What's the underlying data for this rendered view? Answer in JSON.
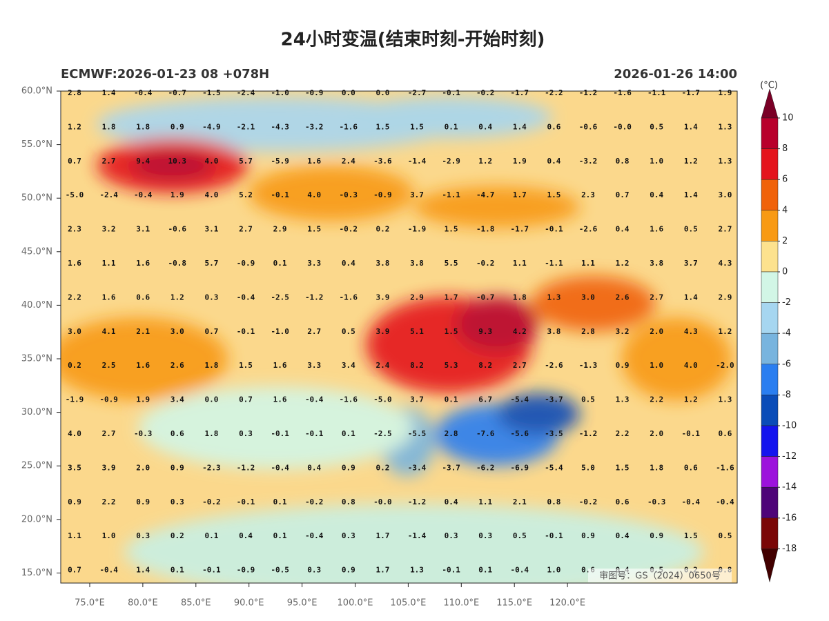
{
  "title": "24小时变温(结束时刻-开始时刻)",
  "subtitle_left": "ECMWF:2026-01-23 08 +078H",
  "subtitle_right": "2026-01-26 14:00",
  "lat_labels": [
    "60.0°N",
    "55.0°N",
    "50.0°N",
    "45.0°N",
    "40.0°N",
    "35.0°N",
    "30.0°N",
    "25.0°N",
    "20.0°N",
    "15.0°N"
  ],
  "lon_labels": [
    "75.0°E",
    "80.0°E",
    "85.0°E",
    "90.0°E",
    "95.0°E",
    "100.0°E",
    "105.0°E",
    "110.0°E",
    "115.0°E",
    "120.0°E"
  ],
  "colorbar": {
    "unit": "(°C)",
    "ticks": [
      10,
      8,
      6,
      4,
      2,
      0,
      -2,
      -4,
      -6,
      -8,
      -10,
      -12,
      -14,
      -16,
      -18
    ],
    "colors": [
      "#7a0026",
      "#b8002c",
      "#e4141c",
      "#f0620a",
      "#f89a14",
      "#fde28e",
      "#d2f6e6",
      "#a6d6f0",
      "#78b4de",
      "#2a7ef0",
      "#0a4cb8",
      "#1414ee",
      "#9c12dc",
      "#4e0478",
      "#7a0606",
      "#420000"
    ]
  },
  "grid_labels": [
    [
      "2.8",
      "1.4",
      "-0.4",
      "-0.7",
      "-1.5",
      "-2.4",
      "-1.0",
      "-0.9",
      "0.0",
      "0.0",
      "-2.7",
      "-0.1",
      "-0.2",
      "-1.7",
      "-2.2",
      "-1.2",
      "-1.6",
      "-1.1",
      "-1.7",
      "1.9"
    ],
    [
      "1.2",
      "1.8",
      "1.8",
      "0.9",
      "-4.9",
      "-2.1",
      "-4.3",
      "-3.2",
      "-1.6",
      "1.5",
      "1.5",
      "0.1",
      "0.4",
      "1.4",
      "0.6",
      "-0.6",
      "-0.0",
      "0.5",
      "1.4",
      "1.3"
    ],
    [
      "0.7",
      "2.7",
      "9.4",
      "10.3",
      "4.0",
      "5.7",
      "-5.9",
      "1.6",
      "2.4",
      "-3.6",
      "-1.4",
      "-2.9",
      "1.2",
      "1.9",
      "0.4",
      "-3.2",
      "0.8",
      "1.0",
      "1.2",
      "1.3"
    ],
    [
      "-5.0",
      "-2.4",
      "-0.4",
      "1.9",
      "4.0",
      "5.2",
      "-0.1",
      "4.0",
      "-0.3",
      "-0.9",
      "3.7",
      "-1.1",
      "-4.7",
      "1.7",
      "1.5",
      "2.3",
      "0.7",
      "0.4",
      "1.4",
      "3.0"
    ],
    [
      "2.3",
      "3.2",
      "3.1",
      "-0.6",
      "3.1",
      "2.7",
      "2.9",
      "1.5",
      "-0.2",
      "0.2",
      "-1.9",
      "1.5",
      "-1.8",
      "-1.7",
      "-0.1",
      "-2.6",
      "0.4",
      "1.6",
      "0.5",
      "2.7"
    ],
    [
      "1.6",
      "1.1",
      "1.6",
      "-0.8",
      "5.7",
      "-0.9",
      "0.1",
      "3.3",
      "0.4",
      "3.8",
      "3.8",
      "5.5",
      "-0.2",
      "1.1",
      "-1.1",
      "1.1",
      "1.2",
      "3.8",
      "3.7",
      "4.3"
    ],
    [
      "2.2",
      "1.6",
      "0.6",
      "1.2",
      "0.3",
      "-0.4",
      "-2.5",
      "-1.2",
      "-1.6",
      "3.9",
      "2.9",
      "1.7",
      "-0.7",
      "1.8",
      "1.3",
      "3.0",
      "2.6",
      "2.7",
      "1.4",
      "2.9"
    ],
    [
      "3.0",
      "4.1",
      "2.1",
      "3.0",
      "0.7",
      "-0.1",
      "-1.0",
      "2.7",
      "0.5",
      "3.9",
      "5.1",
      "1.5",
      "9.3",
      "4.2",
      "3.8",
      "2.8",
      "3.2",
      "2.0",
      "4.3",
      "1.2"
    ],
    [
      "0.2",
      "2.5",
      "1.6",
      "2.6",
      "1.8",
      "1.5",
      "1.6",
      "3.3",
      "3.4",
      "2.4",
      "8.2",
      "5.3",
      "8.2",
      "2.7",
      "-2.6",
      "-1.3",
      "0.9",
      "1.0",
      "4.0",
      "-2.0"
    ],
    [
      "-1.9",
      "-0.9",
      "1.9",
      "3.4",
      "0.0",
      "0.7",
      "1.6",
      "-0.4",
      "-1.6",
      "-5.0",
      "3.7",
      "0.1",
      "6.7",
      "-5.4",
      "-3.7",
      "0.5",
      "1.3",
      "2.2",
      "1.2",
      "1.3"
    ],
    [
      "4.0",
      "2.7",
      "-0.3",
      "0.6",
      "1.8",
      "0.3",
      "-0.1",
      "-0.1",
      "0.1",
      "-2.5",
      "-5.5",
      "2.8",
      "-7.6",
      "-5.6",
      "-3.5",
      "-1.2",
      "2.2",
      "2.0",
      "-0.1",
      "0.6"
    ],
    [
      "3.5",
      "3.9",
      "2.0",
      "0.9",
      "-2.3",
      "-1.2",
      "-0.4",
      "0.4",
      "0.9",
      "0.2",
      "-3.4",
      "-3.7",
      "-6.2",
      "-6.9",
      "-5.4",
      "5.0",
      "1.5",
      "1.8",
      "0.6",
      "-1.6"
    ],
    [
      "0.9",
      "2.2",
      "0.9",
      "0.3",
      "-0.2",
      "-0.1",
      "0.1",
      "-0.2",
      "0.8",
      "-0.0",
      "-1.2",
      "0.4",
      "1.1",
      "2.1",
      "0.8",
      "-0.2",
      "0.6",
      "-0.3",
      "-0.4",
      "-0.4"
    ],
    [
      "1.1",
      "1.0",
      "0.3",
      "0.2",
      "0.1",
      "0.4",
      "0.1",
      "-0.4",
      "0.3",
      "1.7",
      "-1.4",
      "0.3",
      "0.3",
      "0.5",
      "-0.1",
      "0.9",
      "0.4",
      "0.9",
      "1.5",
      "0.5"
    ],
    [
      "0.7",
      "-0.4",
      "1.4",
      "0.1",
      "-0.1",
      "-0.9",
      "-0.5",
      "0.3",
      "0.9",
      "1.7",
      "1.3",
      "-0.1",
      "0.1",
      "-0.4",
      "1.0",
      "0.6",
      "0.4",
      "0.5",
      "0.2",
      "0.8"
    ]
  ],
  "watermark": "审图号：GS（2024）0650号"
}
